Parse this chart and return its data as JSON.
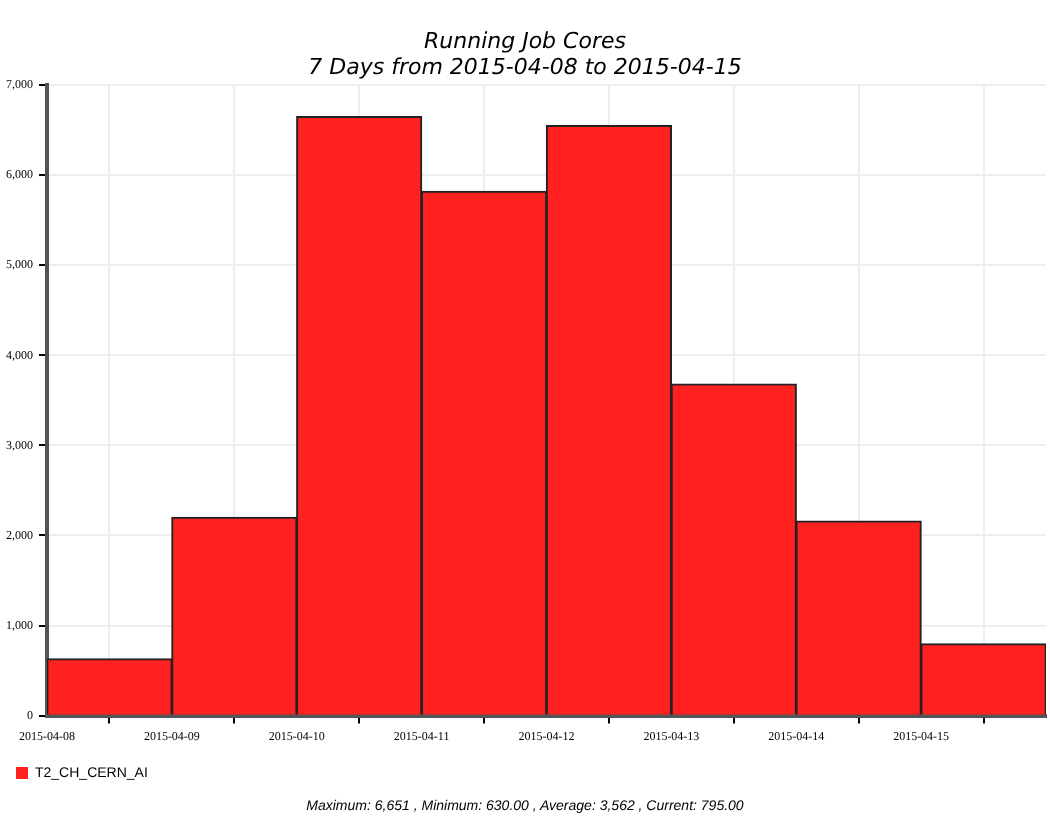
{
  "chart_data": {
    "type": "bar",
    "title": "Running Job Cores",
    "subtitle": "7 Days from 2015-04-08 to 2015-04-15",
    "x": [
      "2015-04-08T12:00",
      "2015-04-09T12:00",
      "2015-04-10T12:00",
      "2015-04-11T12:00",
      "2015-04-12T12:00",
      "2015-04-13T12:00",
      "2015-04-14T12:00",
      "2015-04-15T12:00"
    ],
    "series": [
      {
        "name": "T2_CH_CERN_AI",
        "color": "#ff2020",
        "values": [
          630,
          2200,
          6651,
          5820,
          6550,
          3680,
          2160,
          795
        ]
      }
    ],
    "xlim": [
      "2015-04-08",
      "2015-04-16"
    ],
    "xticks": [
      "2015-04-08",
      "2015-04-09",
      "2015-04-10",
      "2015-04-11",
      "2015-04-12",
      "2015-04-13",
      "2015-04-14",
      "2015-04-15"
    ],
    "ylim": [
      0,
      7000
    ],
    "yticks": [
      0,
      {
        "value": 1000,
        "label": "1,000"
      },
      {
        "value": 2000,
        "label": "2,000"
      },
      {
        "value": 3000,
        "label": "3,000"
      },
      {
        "value": 4000,
        "label": "4,000"
      },
      {
        "value": 5000,
        "label": "5,000"
      },
      {
        "value": 6000,
        "label": "6,000"
      },
      {
        "value": 7000,
        "label": "7,000"
      }
    ],
    "grid": true,
    "legend": "bottom left",
    "annotations": [
      "Maximum: 6,651 , Minimum: 630.00 , Average: 3,562 , Current: 795.00"
    ]
  }
}
